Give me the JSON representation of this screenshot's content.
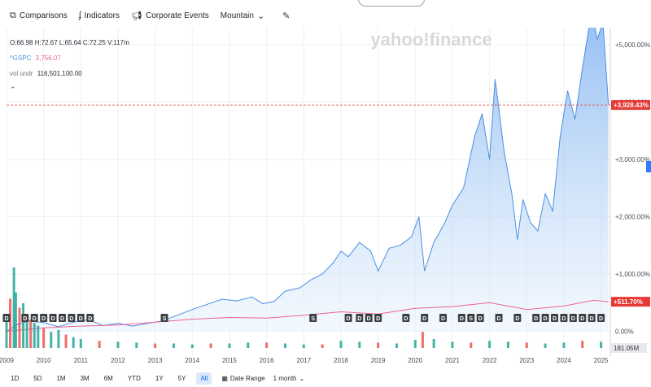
{
  "toolbar": {
    "comparisons": "Comparisons",
    "indicators": "Indicators",
    "corporate_events": "Corporate Events",
    "chart_type": "Mountain"
  },
  "legend": {
    "ohlc": "O:66.98  H:72.67  L:65.64  C:72.25  V:117m",
    "compare_symbol": "^GSPC",
    "compare_value": "3,756.07",
    "vol_label": "vol undr",
    "vol_value": "116,501,100.00"
  },
  "watermark": "yahoo!finance",
  "price_labels": {
    "main": "+3,928.43%",
    "compare": "+511.70%",
    "volume": "181.05M"
  },
  "event_markers": {
    "d_label": "D",
    "s_label": "S"
  },
  "range_buttons": [
    "1D",
    "5D",
    "1M",
    "3M",
    "6M",
    "YTD",
    "1Y",
    "5Y",
    "All"
  ],
  "active_range": "All",
  "date_range_label": "Date Range",
  "interval": "1 month",
  "colors": {
    "main_line": "#4a90e2",
    "compare_line": "#f06292",
    "badge_main": "#e53935",
    "badge_compare": "#e53935",
    "volume_up": "#26a69a",
    "volume_down": "#ef5350"
  },
  "chart_data": {
    "type": "area",
    "x": [
      "2009",
      "2010",
      "2011",
      "2012",
      "2013",
      "2014",
      "2015",
      "2016",
      "2017",
      "2018",
      "2019",
      "2020",
      "2021",
      "2022",
      "2023",
      "2024",
      "2025"
    ],
    "y_ticks": [
      "0.00%",
      "+1,000.00%",
      "+2,000.00%",
      "+3,000.00%",
      "+4,000.00%",
      "+5,000.00%"
    ],
    "ylim": [
      -150,
      5300
    ],
    "series": [
      {
        "values": [
          [
            2009.0,
            0
          ],
          [
            2009.3,
            120
          ],
          [
            2009.6,
            180
          ],
          [
            2010.0,
            150
          ],
          [
            2010.4,
            80
          ],
          [
            2010.8,
            160
          ],
          [
            2011.2,
            200
          ],
          [
            2011.6,
            100
          ],
          [
            2012.0,
            140
          ],
          [
            2012.4,
            90
          ],
          [
            2012.8,
            140
          ],
          [
            2013.2,
            180
          ],
          [
            2013.6,
            280
          ],
          [
            2014.0,
            380
          ],
          [
            2014.4,
            470
          ],
          [
            2014.8,
            560
          ],
          [
            2015.2,
            530
          ],
          [
            2015.6,
            600
          ],
          [
            2015.9,
            480
          ],
          [
            2016.2,
            520
          ],
          [
            2016.5,
            700
          ],
          [
            2016.9,
            760
          ],
          [
            2017.2,
            900
          ],
          [
            2017.5,
            1000
          ],
          [
            2017.8,
            1200
          ],
          [
            2018.0,
            1400
          ],
          [
            2018.2,
            1300
          ],
          [
            2018.5,
            1550
          ],
          [
            2018.8,
            1400
          ],
          [
            2019.0,
            1050
          ],
          [
            2019.3,
            1450
          ],
          [
            2019.6,
            1500
          ],
          [
            2019.9,
            1650
          ],
          [
            2020.1,
            2000
          ],
          [
            2020.25,
            1050
          ],
          [
            2020.5,
            1550
          ],
          [
            2020.8,
            1900
          ],
          [
            2021.0,
            2200
          ],
          [
            2021.3,
            2500
          ],
          [
            2021.6,
            3400
          ],
          [
            2021.8,
            3800
          ],
          [
            2022.0,
            3000
          ],
          [
            2022.15,
            4400
          ],
          [
            2022.4,
            3100
          ],
          [
            2022.6,
            2400
          ],
          [
            2022.75,
            1600
          ],
          [
            2022.9,
            2300
          ],
          [
            2023.1,
            1900
          ],
          [
            2023.3,
            1750
          ],
          [
            2023.5,
            2400
          ],
          [
            2023.7,
            2100
          ],
          [
            2023.9,
            3400
          ],
          [
            2024.1,
            4200
          ],
          [
            2024.3,
            3700
          ],
          [
            2024.5,
            4600
          ],
          [
            2024.75,
            5600
          ],
          [
            2024.9,
            5100
          ],
          [
            2025.05,
            5400
          ],
          [
            2025.2,
            3950
          ]
        ]
      },
      {
        "values": [
          [
            2009.0,
            0
          ],
          [
            2010.0,
            60
          ],
          [
            2011.0,
            90
          ],
          [
            2012.0,
            110
          ],
          [
            2013.0,
            160
          ],
          [
            2014.0,
            210
          ],
          [
            2015.0,
            240
          ],
          [
            2016.0,
            230
          ],
          [
            2017.0,
            280
          ],
          [
            2018.0,
            340
          ],
          [
            2019.0,
            300
          ],
          [
            2020.0,
            400
          ],
          [
            2021.0,
            430
          ],
          [
            2022.0,
            500
          ],
          [
            2023.0,
            380
          ],
          [
            2024.0,
            440
          ],
          [
            2024.8,
            540
          ],
          [
            2025.2,
            515
          ]
        ]
      }
    ],
    "events": {
      "D": [
        2009.0,
        2009.5,
        2009.75,
        2010.0,
        2010.25,
        2010.5,
        2010.75,
        2011.0,
        2011.25,
        2018.2,
        2018.5,
        2018.75,
        2019.0,
        2019.75,
        2020.25,
        2020.75,
        2021.25,
        2021.75,
        2022.25,
        2022.75,
        2023.25,
        2023.5,
        2023.75,
        2024.0,
        2024.25,
        2024.5,
        2024.75,
        2025.0
      ],
      "S": [
        2013.25,
        2017.25,
        2021.5
      ]
    },
    "volume": [
      [
        2009.0,
        0.35
      ],
      [
        2009.1,
        0.55
      ],
      [
        2009.2,
        0.9
      ],
      [
        2009.25,
        0.62
      ],
      [
        2009.35,
        0.45
      ],
      [
        2009.45,
        0.5
      ],
      [
        2009.55,
        0.38
      ],
      [
        2009.65,
        0.32
      ],
      [
        2009.75,
        0.28
      ],
      [
        2009.85,
        0.25
      ],
      [
        2010.0,
        0.22
      ],
      [
        2010.2,
        0.18
      ],
      [
        2010.4,
        0.2
      ],
      [
        2010.6,
        0.15
      ],
      [
        2010.8,
        0.12
      ],
      [
        2011.0,
        0.1
      ],
      [
        2011.5,
        0.08
      ],
      [
        2012.0,
        0.07
      ],
      [
        2012.5,
        0.06
      ],
      [
        2013.0,
        0.05
      ],
      [
        2013.5,
        0.05
      ],
      [
        2014.0,
        0.04
      ],
      [
        2014.5,
        0.05
      ],
      [
        2015.0,
        0.05
      ],
      [
        2015.5,
        0.06
      ],
      [
        2016.0,
        0.06
      ],
      [
        2016.5,
        0.05
      ],
      [
        2017.0,
        0.04
      ],
      [
        2017.5,
        0.04
      ],
      [
        2018.0,
        0.08
      ],
      [
        2018.5,
        0.07
      ],
      [
        2019.0,
        0.06
      ],
      [
        2019.5,
        0.05
      ],
      [
        2020.0,
        0.09
      ],
      [
        2020.2,
        0.18
      ],
      [
        2020.5,
        0.1
      ],
      [
        2021.0,
        0.07
      ],
      [
        2021.5,
        0.06
      ],
      [
        2022.0,
        0.08
      ],
      [
        2022.5,
        0.07
      ],
      [
        2023.0,
        0.06
      ],
      [
        2023.5,
        0.05
      ],
      [
        2024.0,
        0.06
      ],
      [
        2024.5,
        0.08
      ],
      [
        2025.0,
        0.07
      ]
    ]
  }
}
